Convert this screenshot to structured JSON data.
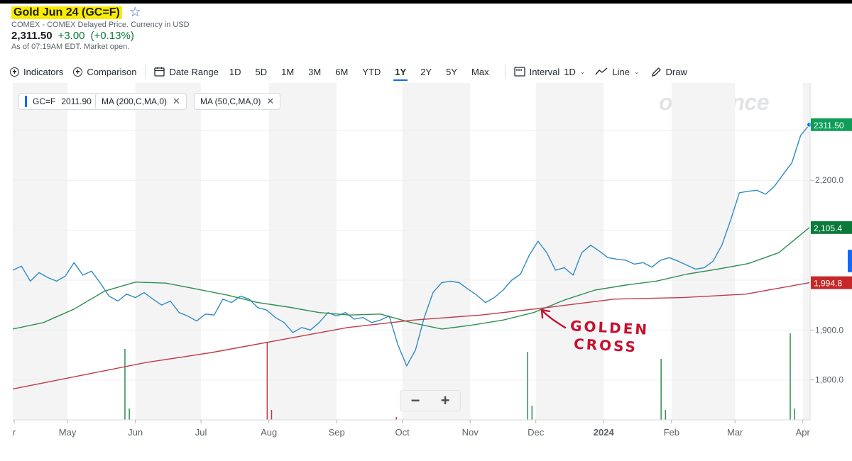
{
  "header": {
    "title": "Gold Jun 24 (GC=F)",
    "subtitle": "COMEX - COMEX Delayed Price. Currency in USD",
    "price": "2,311.50",
    "change": "+3.00",
    "change_pct": "(+0.13%)",
    "as_of": "As of 07:19AM EDT. Market open."
  },
  "toolbar": {
    "indicators": "Indicators",
    "comparison": "Comparison",
    "date_range": "Date Range",
    "ranges": [
      "1D",
      "5D",
      "1M",
      "3M",
      "6M",
      "YTD",
      "1Y",
      "2Y",
      "5Y",
      "Max"
    ],
    "active_range": "1Y",
    "interval": "Interval",
    "interval_value": "1D",
    "line": "Line",
    "draw": "Draw"
  },
  "legend": {
    "symbol": "GC=F",
    "symbol_value": "2011.90",
    "ma200": "MA (200,C,MA,0)",
    "ma50": "MA (50,C,MA,0)"
  },
  "watermark": "oo/finance",
  "annotation": {
    "line1": "GOLDEN",
    "line2": "CROSS"
  },
  "zoom": {
    "minus": "−",
    "plus": "+"
  },
  "colors": {
    "price": "#2f8bc4",
    "ma50": "#2f8f52",
    "ma200": "#c23a48",
    "price_tag": "#0f9d58",
    "ma50_tag": "#0a7a3b",
    "ma200_tag": "#c62828",
    "annotation": "#c8102e",
    "highlight": "#f9ec00"
  },
  "chart_data": {
    "type": "line",
    "x_axis_labels": [
      "r",
      "May",
      "Jun",
      "Jul",
      "Aug",
      "Sep",
      "Oct",
      "Nov",
      "Dec",
      "2024",
      "Feb",
      "Mar",
      "Apr"
    ],
    "y_axis_labels": [
      "2,300.0",
      "2,200.0",
      "2,105.4",
      "1,994.8",
      "1,900.0",
      "1,800.0"
    ],
    "y_ticks": [
      1800,
      1900,
      2000,
      2100,
      2200,
      2300
    ],
    "ylim": [
      1720,
      2395
    ],
    "price_tags": [
      {
        "label": "2311.50",
        "value": 2311.5,
        "series": "price"
      },
      {
        "label": "2,105.4",
        "value": 2105.4,
        "series": "ma50"
      },
      {
        "label": "1,994.8",
        "value": 1994.8,
        "series": "ma200"
      }
    ],
    "series": [
      {
        "key": "price",
        "x": [
          "2023-04-06",
          "2023-04-10",
          "2023-04-14",
          "2023-04-18",
          "2023-04-22",
          "2023-04-26",
          "2023-04-30",
          "2023-05-04",
          "2023-05-08",
          "2023-05-12",
          "2023-05-16",
          "2023-05-20",
          "2023-05-24",
          "2023-05-28",
          "2023-06-01",
          "2023-06-05",
          "2023-06-09",
          "2023-06-13",
          "2023-06-17",
          "2023-06-21",
          "2023-06-25",
          "2023-06-29",
          "2023-07-03",
          "2023-07-07",
          "2023-07-11",
          "2023-07-15",
          "2023-07-19",
          "2023-07-23",
          "2023-07-27",
          "2023-07-31",
          "2023-08-04",
          "2023-08-08",
          "2023-08-12",
          "2023-08-16",
          "2023-08-20",
          "2023-08-24",
          "2023-08-28",
          "2023-09-01",
          "2023-09-05",
          "2023-09-09",
          "2023-09-13",
          "2023-09-17",
          "2023-09-21",
          "2023-09-25",
          "2023-09-29",
          "2023-10-03",
          "2023-10-07",
          "2023-10-11",
          "2023-10-15",
          "2023-10-19",
          "2023-10-23",
          "2023-10-27",
          "2023-10-31",
          "2023-11-04",
          "2023-11-08",
          "2023-11-12",
          "2023-11-16",
          "2023-11-20",
          "2023-11-24",
          "2023-11-28",
          "2023-12-02",
          "2023-12-06",
          "2023-12-10",
          "2023-12-14",
          "2023-12-18",
          "2023-12-22",
          "2023-12-26",
          "2023-12-30",
          "2024-01-03",
          "2024-01-07",
          "2024-01-11",
          "2024-01-15",
          "2024-01-19",
          "2024-01-23",
          "2024-01-27",
          "2024-01-31",
          "2024-02-04",
          "2024-02-08",
          "2024-02-12",
          "2024-02-16",
          "2024-02-20",
          "2024-02-24",
          "2024-02-28",
          "2024-03-03",
          "2024-03-07",
          "2024-03-11",
          "2024-03-15",
          "2024-03-19",
          "2024-03-23",
          "2024-03-27",
          "2024-03-31",
          "2024-04-04"
        ],
        "values": [
          2020,
          2028,
          1998,
          2015,
          2005,
          1998,
          2008,
          2035,
          2010,
          2018,
          1994,
          1968,
          1958,
          1972,
          1965,
          1975,
          1962,
          1950,
          1958,
          1935,
          1928,
          1918,
          1932,
          1930,
          1962,
          1955,
          1968,
          1962,
          1945,
          1940,
          1925,
          1915,
          1895,
          1905,
          1900,
          1915,
          1935,
          1928,
          1935,
          1922,
          1925,
          1915,
          1920,
          1928,
          1870,
          1828,
          1860,
          1925,
          1975,
          1995,
          1998,
          1995,
          1982,
          1970,
          1955,
          1965,
          1980,
          2000,
          2012,
          2050,
          2078,
          2055,
          2020,
          2025,
          2010,
          2055,
          2070,
          2058,
          2045,
          2042,
          2040,
          2032,
          2035,
          2026,
          2040,
          2045,
          2038,
          2030,
          2022,
          2025,
          2038,
          2070,
          2120,
          2175,
          2178,
          2180,
          2172,
          2188,
          2212,
          2235,
          2290,
          2311.5
        ]
      },
      {
        "key": "ma50",
        "x": [
          "2023-04-06",
          "2023-04-20",
          "2023-05-04",
          "2023-05-18",
          "2023-06-01",
          "2023-06-15",
          "2023-06-29",
          "2023-07-13",
          "2023-07-27",
          "2023-08-10",
          "2023-08-24",
          "2023-09-07",
          "2023-09-21",
          "2023-10-05",
          "2023-10-19",
          "2023-11-02",
          "2023-11-16",
          "2023-11-30",
          "2023-12-14",
          "2023-12-28",
          "2024-01-11",
          "2024-01-25",
          "2024-02-08",
          "2024-02-22",
          "2024-03-07",
          "2024-03-21",
          "2024-04-04"
        ],
        "values": [
          1902,
          1915,
          1942,
          1978,
          1996,
          1994,
          1982,
          1970,
          1955,
          1946,
          1935,
          1930,
          1932,
          1915,
          1902,
          1910,
          1920,
          1935,
          1960,
          1980,
          1990,
          1998,
          2012,
          2022,
          2033,
          2055,
          2105.4
        ]
      },
      {
        "key": "ma200",
        "x": [
          "2023-04-06",
          "2023-05-06",
          "2023-06-06",
          "2023-07-06",
          "2023-08-06",
          "2023-09-06",
          "2023-10-06",
          "2023-11-06",
          "2023-12-06",
          "2024-01-06",
          "2024-02-06",
          "2024-03-06",
          "2024-04-04"
        ],
        "values": [
          1782,
          1808,
          1835,
          1855,
          1880,
          1905,
          1920,
          1930,
          1945,
          1962,
          1965,
          1972,
          1994.8
        ]
      }
    ],
    "volume": {
      "x": [
        "2023-05-27",
        "2023-05-29",
        "2023-07-31",
        "2023-08-02",
        "2023-09-28",
        "2023-11-27",
        "2023-11-29",
        "2024-01-27",
        "2024-01-29",
        "2024-03-26",
        "2024-03-28"
      ],
      "values": [
        100,
        16,
        110,
        14,
        4,
        96,
        20,
        86,
        14,
        122,
        16
      ],
      "colors": [
        "#2f8f52",
        "#2f8f52",
        "#c23a48",
        "#c23a48",
        "#c23a48",
        "#2f8f52",
        "#2f8f52",
        "#2f8f52",
        "#2f8f52",
        "#2f8f52",
        "#2f8f52"
      ]
    }
  }
}
